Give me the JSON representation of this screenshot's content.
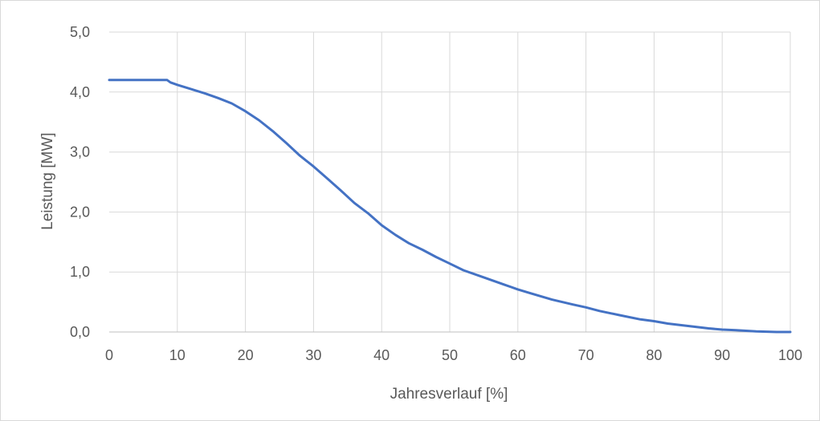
{
  "chart_data": {
    "type": "line",
    "title": "",
    "xlabel": "Jahresverlauf [%]",
    "ylabel": "Leistung [MW]",
    "xlim": [
      0,
      100
    ],
    "ylim": [
      0,
      5
    ],
    "x_ticks": [
      "0",
      "10",
      "20",
      "30",
      "40",
      "50",
      "60",
      "70",
      "80",
      "90",
      "100"
    ],
    "y_ticks": [
      "0,0",
      "1,0",
      "2,0",
      "3,0",
      "4,0",
      "5,0"
    ],
    "grid": true,
    "legend": "none",
    "line_color": "#4472c4",
    "series": [
      {
        "x": [
          0,
          2,
          4,
          6,
          8,
          8.5,
          9,
          10,
          12,
          14,
          16,
          18,
          20,
          22,
          24,
          26,
          28,
          30,
          32,
          34,
          36,
          38,
          40,
          42,
          44,
          46,
          48,
          50,
          52,
          55,
          58,
          60,
          62,
          65,
          68,
          70,
          72,
          75,
          78,
          80,
          82,
          85,
          88,
          90,
          92,
          95,
          98,
          100
        ],
        "y": [
          4.2,
          4.2,
          4.2,
          4.2,
          4.2,
          4.2,
          4.16,
          4.12,
          4.05,
          3.98,
          3.9,
          3.81,
          3.68,
          3.53,
          3.35,
          3.15,
          2.94,
          2.76,
          2.56,
          2.36,
          2.15,
          1.98,
          1.78,
          1.62,
          1.48,
          1.37,
          1.25,
          1.14,
          1.03,
          0.91,
          0.79,
          0.71,
          0.64,
          0.54,
          0.46,
          0.41,
          0.35,
          0.28,
          0.21,
          0.18,
          0.14,
          0.1,
          0.06,
          0.04,
          0.03,
          0.01,
          0.0,
          0.0
        ]
      }
    ]
  }
}
